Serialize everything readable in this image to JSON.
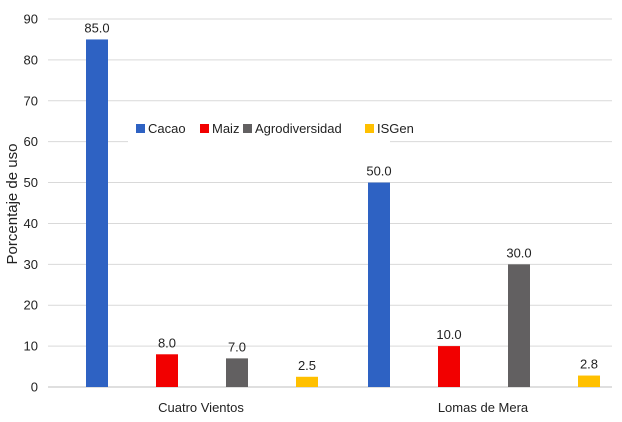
{
  "chart_data": {
    "type": "bar",
    "title": "",
    "xlabel": "",
    "ylabel": "Porcentaje de uso",
    "ylim": [
      0,
      90
    ],
    "yticks": [
      0,
      10,
      20,
      30,
      40,
      50,
      60,
      70,
      80,
      90
    ],
    "grid": true,
    "legend_position": "inside-middle",
    "categories": [
      "Cuatro Vientos",
      "Lomas de Mera"
    ],
    "series": [
      {
        "name": "Cacao",
        "color": "#2E62C3",
        "values": [
          85.0,
          50.0
        ],
        "labels": [
          "85.0",
          "50.0"
        ]
      },
      {
        "name": "Maiz",
        "color": "#F20000",
        "values": [
          8.0,
          10.0
        ],
        "labels": [
          "8.0",
          "10.0"
        ]
      },
      {
        "name": "Agrodiversidad",
        "color": "#626061",
        "values": [
          7.0,
          30.0
        ],
        "labels": [
          "7.0",
          "30.0"
        ]
      },
      {
        "name": "ISGen",
        "color": "#FFC000",
        "values": [
          2.5,
          2.8
        ],
        "labels": [
          "2.5",
          "2.8"
        ]
      }
    ]
  }
}
